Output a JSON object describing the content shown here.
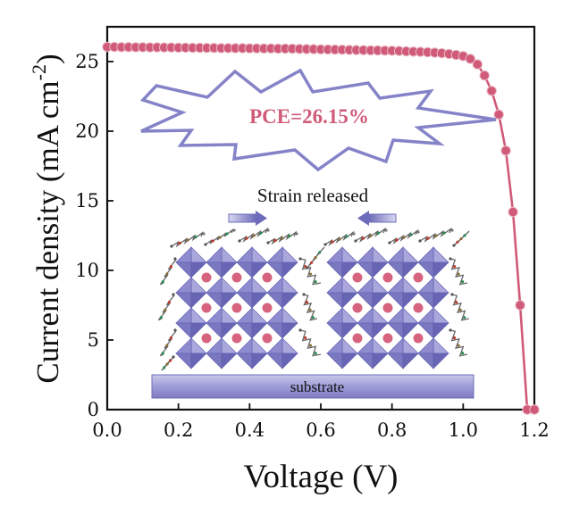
{
  "chart_data": {
    "type": "scatter",
    "xlabel": "Voltage (V)",
    "ylabel": "Current density (mA cm",
    "ylabel_sup": "-2",
    "ylabel_close": ")",
    "xlim": [
      0.0,
      1.2
    ],
    "ylim": [
      0,
      27.5
    ],
    "x_ticks": [
      "0.0",
      "0.2",
      "0.4",
      "0.6",
      "0.8",
      "1.0",
      "1.2"
    ],
    "y_ticks": [
      "0",
      "5",
      "10",
      "15",
      "20",
      "25"
    ],
    "grid": false,
    "colors": {
      "series": "#d05a78",
      "series_light": "#e8b8c5",
      "burst_stroke": "#8080c8",
      "octahedron": "#7a78c0"
    },
    "series": [
      {
        "marker": "circle",
        "x": [
          0.0,
          0.02,
          0.04,
          0.06,
          0.08,
          0.1,
          0.12,
          0.14,
          0.16,
          0.18,
          0.2,
          0.22,
          0.24,
          0.26,
          0.28,
          0.3,
          0.32,
          0.34,
          0.36,
          0.38,
          0.4,
          0.42,
          0.44,
          0.46,
          0.48,
          0.5,
          0.52,
          0.54,
          0.56,
          0.58,
          0.6,
          0.62,
          0.64,
          0.66,
          0.68,
          0.7,
          0.72,
          0.74,
          0.76,
          0.78,
          0.8,
          0.82,
          0.84,
          0.86,
          0.88,
          0.9,
          0.92,
          0.94,
          0.96,
          0.98,
          1.0,
          1.02,
          1.04,
          1.06,
          1.08,
          1.1,
          1.12,
          1.14,
          1.16,
          1.18,
          1.2
        ],
        "y": [
          26.05,
          26.05,
          26.04,
          26.04,
          26.03,
          26.03,
          26.02,
          26.02,
          26.01,
          26.01,
          26.0,
          26.0,
          25.99,
          25.99,
          25.98,
          25.98,
          25.97,
          25.97,
          25.96,
          25.96,
          25.95,
          25.95,
          25.94,
          25.94,
          25.93,
          25.93,
          25.92,
          25.91,
          25.9,
          25.89,
          25.88,
          25.87,
          25.86,
          25.85,
          25.84,
          25.83,
          25.82,
          25.81,
          25.8,
          25.79,
          25.78,
          25.76,
          25.74,
          25.72,
          25.7,
          25.67,
          25.64,
          25.6,
          25.55,
          25.48,
          25.4,
          25.2,
          24.8,
          24.0,
          22.9,
          21.2,
          18.6,
          14.2,
          7.5,
          0.0,
          0.0
        ]
      }
    ],
    "annotations": {
      "pce": "PCE=26.15%",
      "strain": "Strain released",
      "substrate": "substrate"
    }
  }
}
